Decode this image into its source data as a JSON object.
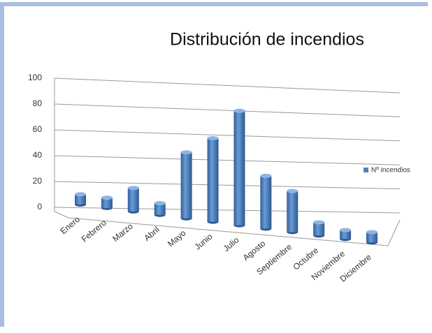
{
  "chart_data": {
    "type": "bar",
    "title": "Distribución de incendios",
    "categories": [
      "Enero",
      "Febrero",
      "Marzo",
      "Abril",
      "Mayo",
      "Junio",
      "Julio",
      "Agosto",
      "Septiembre",
      "Octubre",
      "Noviembre",
      "Diciembre"
    ],
    "series": [
      {
        "name": "Nº incendios",
        "color": "#4f81bd",
        "values": [
          7,
          7,
          16,
          8,
          45,
          57,
          78,
          36,
          28,
          9,
          6,
          7
        ]
      }
    ],
    "ylim": [
      0,
      100
    ],
    "yticks": [
      0,
      20,
      40,
      60,
      80,
      100
    ],
    "grid": true,
    "legend": "right"
  }
}
